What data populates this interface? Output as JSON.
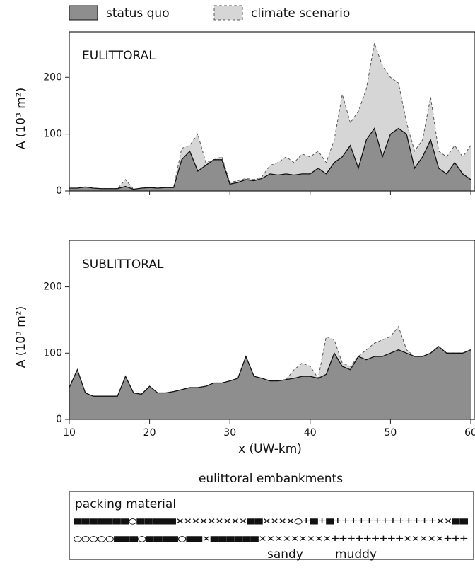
{
  "chart_data": [
    {
      "type": "area",
      "panel_label": "EULITTORAL",
      "ylabel": "A (10³ m²)",
      "xlim": [
        10,
        60
      ],
      "xticks": [
        10,
        20,
        30,
        40,
        50,
        60
      ],
      "xtick_labels": false,
      "ylim": [
        0,
        280
      ],
      "yticks": [
        0,
        100,
        200
      ],
      "x": [
        10,
        11,
        12,
        13,
        14,
        15,
        16,
        17,
        18,
        19,
        20,
        21,
        22,
        23,
        24,
        25,
        26,
        27,
        28,
        29,
        30,
        31,
        32,
        33,
        34,
        35,
        36,
        37,
        38,
        39,
        40,
        41,
        42,
        43,
        44,
        45,
        46,
        47,
        48,
        49,
        50,
        51,
        52,
        53,
        54,
        55,
        56,
        57,
        58,
        59,
        60
      ],
      "series": [
        {
          "name": "climate scenario",
          "color": "#d6d6d6",
          "dashed": true,
          "values": [
            5,
            5,
            7,
            5,
            4,
            4,
            4,
            20,
            3,
            5,
            6,
            5,
            6,
            6,
            75,
            80,
            100,
            50,
            55,
            60,
            15,
            18,
            22,
            20,
            25,
            45,
            50,
            60,
            50,
            65,
            60,
            70,
            50,
            90,
            170,
            120,
            140,
            180,
            260,
            220,
            200,
            190,
            120,
            70,
            90,
            165,
            70,
            60,
            80,
            60,
            80
          ]
        },
        {
          "name": "status quo",
          "color": "#8e8e8e",
          "dashed": false,
          "values": [
            5,
            5,
            7,
            5,
            4,
            4,
            4,
            8,
            3,
            5,
            6,
            5,
            6,
            6,
            55,
            70,
            35,
            45,
            55,
            55,
            12,
            15,
            20,
            18,
            22,
            30,
            28,
            30,
            28,
            30,
            30,
            40,
            30,
            50,
            60,
            80,
            40,
            90,
            110,
            60,
            100,
            110,
            100,
            40,
            60,
            90,
            40,
            30,
            50,
            30,
            20
          ]
        }
      ]
    },
    {
      "type": "area",
      "panel_label": "SUBLITTORAL",
      "ylabel": "A (10³ m²)",
      "xlabel": "x (UW-km)",
      "xlim": [
        10,
        60
      ],
      "xticks": [
        10,
        20,
        30,
        40,
        50,
        60
      ],
      "xtick_labels": true,
      "ylim": [
        0,
        270
      ],
      "yticks": [
        0,
        100,
        200
      ],
      "x": [
        10,
        11,
        12,
        13,
        14,
        15,
        16,
        17,
        18,
        19,
        20,
        21,
        22,
        23,
        24,
        25,
        26,
        27,
        28,
        29,
        30,
        31,
        32,
        33,
        34,
        35,
        36,
        37,
        38,
        39,
        40,
        41,
        42,
        43,
        44,
        45,
        46,
        47,
        48,
        49,
        50,
        51,
        52,
        53,
        54,
        55,
        56,
        57,
        58,
        59,
        60
      ],
      "series": [
        {
          "color": "#d6d6d6",
          "dashed": true,
          "values": [
            48,
            75,
            40,
            35,
            35,
            35,
            35,
            65,
            40,
            38,
            50,
            40,
            40,
            42,
            45,
            48,
            48,
            50,
            55,
            55,
            58,
            62,
            95,
            65,
            62,
            58,
            58,
            60,
            75,
            85,
            80,
            62,
            125,
            120,
            85,
            80,
            95,
            105,
            115,
            120,
            125,
            140,
            105,
            95,
            95,
            100,
            110,
            100,
            100,
            100,
            105
          ]
        },
        {
          "color": "#8e8e8e",
          "dashed": false,
          "values": [
            48,
            75,
            40,
            35,
            35,
            35,
            35,
            65,
            40,
            38,
            50,
            40,
            40,
            42,
            45,
            48,
            48,
            50,
            55,
            55,
            58,
            62,
            95,
            65,
            62,
            58,
            58,
            60,
            62,
            65,
            65,
            62,
            68,
            100,
            80,
            75,
            95,
            90,
            95,
            95,
            100,
            105,
            100,
            95,
            95,
            100,
            110,
            100,
            100,
            100,
            105
          ]
        }
      ]
    }
  ],
  "embankments": {
    "title": "eulittoral embankments",
    "heading": "packing material",
    "rows": [
      "■■■■■■■○■■■■■×××××××××■■××××○+■+■+++++++++++++××■■",
      "○○○○○■■■○■■■■○■■×■■■■■■×××××××××+++++++++×××××+++"
    ],
    "notes": [
      "sandy",
      "muddy"
    ]
  }
}
